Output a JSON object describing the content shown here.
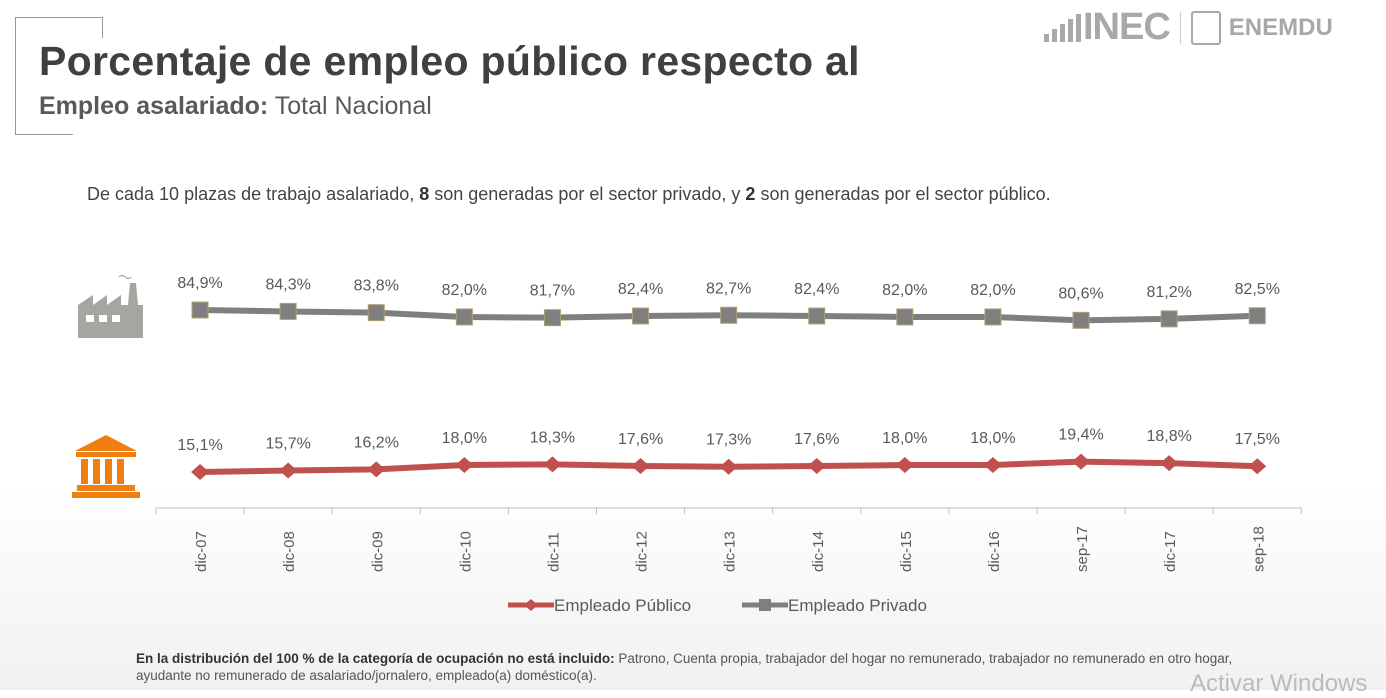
{
  "header": {
    "title": "Porcentaje de empleo público respecto al",
    "subtitle_bold": "Empleo asalariado:",
    "subtitle_rest": " Total Nacional"
  },
  "logo": {
    "brand": "INEC",
    "product": "ENEMDU"
  },
  "intro": {
    "p1": "De cada 10 plazas de trabajo asalariado, ",
    "n1": "8",
    "p2": " son generadas por el sector privado, y ",
    "n2": "2",
    "p3": " son generadas por el sector público."
  },
  "chart_data": {
    "type": "line",
    "categories": [
      "dic-07",
      "dic-08",
      "dic-09",
      "dic-10",
      "dic-11",
      "dic-12",
      "dic-13",
      "dic-14",
      "dic-15",
      "dic-16",
      "sep-17",
      "dic-17",
      "sep-18"
    ],
    "series": [
      {
        "name": "Empleado Público",
        "color": "#c0504d",
        "marker": "diamond",
        "values": [
          15.1,
          15.7,
          16.2,
          18.0,
          18.3,
          17.6,
          17.3,
          17.6,
          18.0,
          18.0,
          19.4,
          18.8,
          17.5
        ],
        "labels": [
          "15,1%",
          "15,7%",
          "16,2%",
          "18,0%",
          "18,3%",
          "17,6%",
          "17,3%",
          "17,6%",
          "18,0%",
          "18,0%",
          "19,4%",
          "18,8%",
          "17,5%"
        ]
      },
      {
        "name": "Empleado Privado",
        "color": "#7f7f7f",
        "marker": "square",
        "values": [
          84.9,
          84.3,
          83.8,
          82.0,
          81.7,
          82.4,
          82.7,
          82.4,
          82.0,
          82.0,
          80.6,
          81.2,
          82.5
        ],
        "labels": [
          "84,9%",
          "84,3%",
          "83,8%",
          "82,0%",
          "81,7%",
          "82,4%",
          "82,7%",
          "82,4%",
          "82,0%",
          "82,0%",
          "80,6%",
          "81,2%",
          "82,5%"
        ]
      }
    ],
    "legend": "bottom",
    "grid": false
  },
  "icons": {
    "private": "factory-icon",
    "public": "government-building-icon",
    "private_color": "#a6a6a0",
    "public_color": "#f07f12"
  },
  "note": {
    "bold": "En la distribución del 100 % de la categoría de ocupación no está incluido:",
    "rest": " Patrono, Cuenta propia, trabajador del hogar no remunerado, trabajador no remunerado en otro hogar, ayudante no remunerado de asalariado/jornalero, empleado(a) doméstico(a)."
  },
  "watermark": "Activar Windows"
}
